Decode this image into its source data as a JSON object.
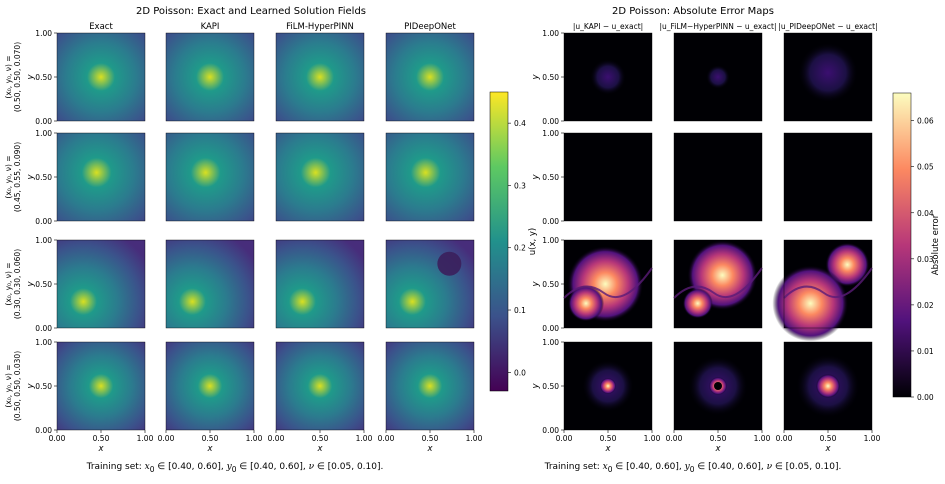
{
  "chart_data": [
    {
      "type": "heatmap",
      "title": "2D Poisson: Exact and Learned Solution Fields",
      "columns": [
        "Exact",
        "KAPI",
        "FiLM-HyperPINN",
        "PIDeepONet"
      ],
      "row_labels": [
        [
          "(x₀, y₀, ν) =",
          "(0.50, 0.50, 0.070)"
        ],
        [
          "(x₀, y₀, ν) =",
          "(0.45, 0.55, 0.090)"
        ],
        [
          "(x₀, y₀, ν) =",
          "(0.30, 0.30, 0.060)"
        ],
        [
          "(x₀, y₀, ν) =",
          "(0.50, 0.50, 0.030)"
        ]
      ],
      "cases": [
        {
          "x0": 0.5,
          "y0": 0.5,
          "nu": 0.07
        },
        {
          "x0": 0.45,
          "y0": 0.55,
          "nu": 0.09
        },
        {
          "x0": 0.3,
          "y0": 0.3,
          "nu": 0.06
        },
        {
          "x0": 0.5,
          "y0": 0.5,
          "nu": 0.03
        }
      ],
      "xlabel": "x",
      "ylabel": "y",
      "xticks": [
        "0.00",
        "0.50",
        "1.00"
      ],
      "yticks": [
        "0.00",
        "0.50",
        "1.00"
      ],
      "xlim": [
        0,
        1
      ],
      "ylim": [
        0,
        1
      ],
      "colorbar": {
        "label": "u(x, y)",
        "range": [
          -0.03,
          0.45
        ],
        "ticks": [
          "0.0",
          "0.1",
          "0.2",
          "0.3",
          "0.4"
        ],
        "colormap": "viridis"
      },
      "footer": "Training set: x₀ ∈ [0.40, 0.60], y₀ ∈ [0.40, 0.60], ν ∈ [0.05, 0.10]."
    },
    {
      "type": "heatmap",
      "title": "2D Poisson: Absolute Error Maps",
      "columns": [
        "|u_KAPI − u_exact|",
        "|u_FiLM−HyperPINN − u_exact|",
        "|u_PIDeepONet − u_exact|"
      ],
      "xlabel": "x",
      "ylabel": "y",
      "xticks": [
        "0.00",
        "0.50",
        "1.00"
      ],
      "yticks": [
        "0.00",
        "0.50",
        "1.00"
      ],
      "xlim": [
        0,
        1
      ],
      "ylim": [
        0,
        1
      ],
      "colorbar": {
        "label": "Absolute error",
        "range": [
          0,
          0.066
        ],
        "ticks": [
          "0.00",
          "0.01",
          "0.02",
          "0.03",
          "0.04",
          "0.05",
          "0.06"
        ],
        "colormap": "magma"
      },
      "footer": "Training set: x₀ ∈ [0.40, 0.60], y₀ ∈ [0.40, 0.60], ν ∈ [0.05, 0.10]."
    }
  ]
}
